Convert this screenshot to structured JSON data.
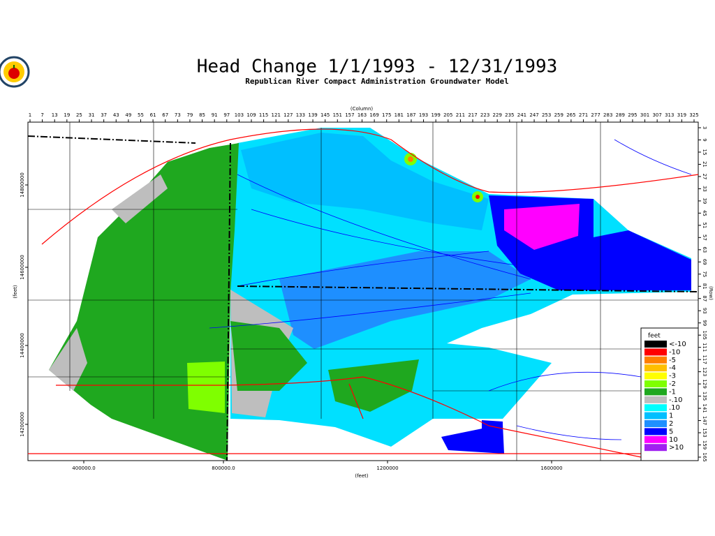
{
  "header": {
    "title": "Head Change 1/1/1993 - 12/31/1993",
    "subtitle": "Republican River Compact Administration Groundwater Model"
  },
  "axes": {
    "column_label": "(Column)",
    "row_label": "(Row)",
    "x_label": "(feet)",
    "y_label": "(feet)",
    "columns": [
      1,
      7,
      13,
      19,
      25,
      31,
      37,
      43,
      49,
      55,
      61,
      67,
      73,
      79,
      85,
      91,
      97,
      103,
      109,
      115,
      121,
      127,
      133,
      139,
      145,
      151,
      157,
      163,
      169,
      175,
      181,
      187,
      193,
      199,
      205,
      211,
      217,
      223,
      229,
      235,
      241,
      247,
      253,
      259,
      265,
      271,
      277,
      283,
      289,
      295,
      301,
      307,
      313,
      319,
      325
    ],
    "rows": [
      3,
      9,
      15,
      21,
      27,
      33,
      39,
      45,
      51,
      57,
      63,
      69,
      75,
      81,
      87,
      93,
      99,
      105,
      111,
      117,
      123,
      129,
      135,
      141,
      147,
      153,
      159,
      165
    ],
    "x_ticks": [
      "400000.0",
      "800000.0",
      "1200000",
      "1600000"
    ],
    "y_ticks": [
      "14800000",
      "14600000",
      "14400000",
      "14200000"
    ]
  },
  "legend": {
    "title": "feet",
    "entries": [
      {
        "label": "<-10",
        "color": "#000000"
      },
      {
        "label": "-10",
        "color": "#ff0000"
      },
      {
        "label": "-5",
        "color": "#ff7f00"
      },
      {
        "label": "-4",
        "color": "#ffbf00"
      },
      {
        "label": "-3",
        "color": "#ffff00"
      },
      {
        "label": "-2",
        "color": "#7fff00"
      },
      {
        "label": "-1",
        "color": "#1fa81f"
      },
      {
        "label": "-.10",
        "color": "#bebebe"
      },
      {
        "label": ".10",
        "color": "#00ffff"
      },
      {
        "label": "1",
        "color": "#00bfff"
      },
      {
        "label": "2",
        "color": "#1e8fff"
      },
      {
        "label": "5",
        "color": "#0000ff"
      },
      {
        "label": "10",
        "color": "#ff00ff"
      },
      {
        "label": ">10",
        "color": "#a020f0"
      }
    ]
  }
}
